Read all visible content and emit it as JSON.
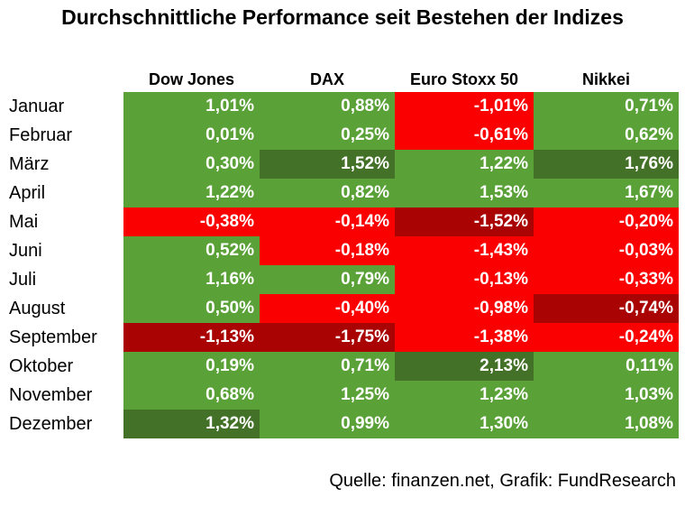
{
  "title": "Durchschnittliche Performance seit Bestehen der Indizes",
  "caption": "Quelle: finanzen.net, Grafik: FundResearch",
  "colors": {
    "green": "#5AA238",
    "dark_green": "#447128",
    "red": "#FB0000",
    "dark_red": "#AA0303",
    "cell_text": "#FFFFFF",
    "text": "#000000",
    "background": "#FFFFFF"
  },
  "chart_data": {
    "type": "heatmap",
    "title": "Durchschnittliche Performance seit Bestehen der Indizes",
    "columns": [
      "Dow Jones",
      "DAX",
      "Euro Stoxx 50",
      "Nikkei"
    ],
    "rows": [
      "Januar",
      "Februar",
      "März",
      "April",
      "Mai",
      "Juni",
      "Juli",
      "August",
      "September",
      "Oktober",
      "November",
      "Dezember"
    ],
    "unit": "%",
    "decimal_separator": ",",
    "values_pct": [
      [
        1.01,
        0.88,
        -1.01,
        0.71
      ],
      [
        0.01,
        0.25,
        -0.61,
        0.62
      ],
      [
        0.3,
        1.52,
        1.22,
        1.76
      ],
      [
        1.22,
        0.82,
        1.53,
        1.67
      ],
      [
        -0.38,
        -0.14,
        -1.52,
        -0.2
      ],
      [
        0.52,
        -0.18,
        -1.43,
        -0.03
      ],
      [
        1.16,
        0.79,
        -0.13,
        -0.33
      ],
      [
        0.5,
        -0.4,
        -0.98,
        -0.74
      ],
      [
        -1.13,
        -1.75,
        -1.38,
        -0.24
      ],
      [
        0.19,
        0.71,
        2.13,
        0.11
      ],
      [
        0.68,
        1.25,
        1.23,
        1.03
      ],
      [
        1.32,
        0.99,
        1.3,
        1.08
      ]
    ],
    "cell_colors": [
      [
        "green",
        "green",
        "red",
        "green"
      ],
      [
        "green",
        "green",
        "red",
        "green"
      ],
      [
        "green",
        "dark_green",
        "green",
        "dark_green"
      ],
      [
        "green",
        "green",
        "green",
        "green"
      ],
      [
        "red",
        "red",
        "dark_red",
        "red"
      ],
      [
        "green",
        "red",
        "red",
        "red"
      ],
      [
        "green",
        "green",
        "red",
        "red"
      ],
      [
        "green",
        "red",
        "red",
        "dark_red"
      ],
      [
        "dark_red",
        "dark_red",
        "red",
        "red"
      ],
      [
        "green",
        "green",
        "dark_green",
        "green"
      ],
      [
        "green",
        "green",
        "green",
        "green"
      ],
      [
        "dark_green",
        "green",
        "green",
        "green"
      ]
    ],
    "legend": null,
    "grid": false
  }
}
